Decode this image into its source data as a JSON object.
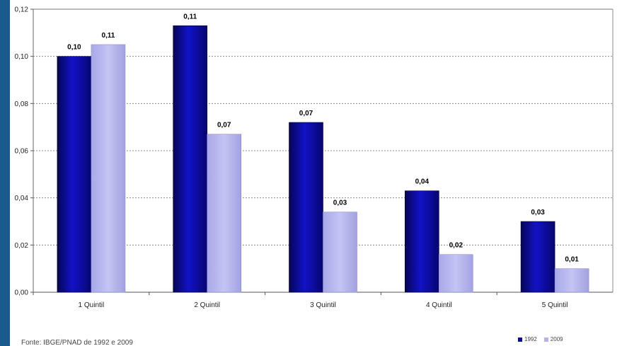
{
  "chart_data": {
    "type": "bar",
    "categories": [
      "1 Quintil",
      "2 Quintil",
      "3 Quintil",
      "4 Quintil",
      "5 Quintil"
    ],
    "series": [
      {
        "name": "1992",
        "color": "#0b0b9e",
        "values": [
          0.1,
          0.113,
          0.072,
          0.043,
          0.03
        ],
        "labels": [
          "0,10",
          "0,11",
          "0,07",
          "0,04",
          "0,03"
        ]
      },
      {
        "name": "2009",
        "color": "#b3b3ee",
        "values": [
          0.105,
          0.067,
          0.034,
          0.016,
          0.01
        ],
        "labels": [
          "0,11",
          "0,07",
          "0,03",
          "0,02",
          "0,01"
        ]
      }
    ],
    "ylim": [
      0,
      0.12
    ],
    "yticks": [
      "0,00",
      "0,02",
      "0,04",
      "0,06",
      "0,08",
      "0,10",
      "0,12"
    ],
    "grid": true,
    "legend_position": "bottom-right"
  },
  "source": "Fonte: IBGE/PNAD de 1992 e 2009",
  "colors": {
    "frame": "#1a5a8c"
  }
}
